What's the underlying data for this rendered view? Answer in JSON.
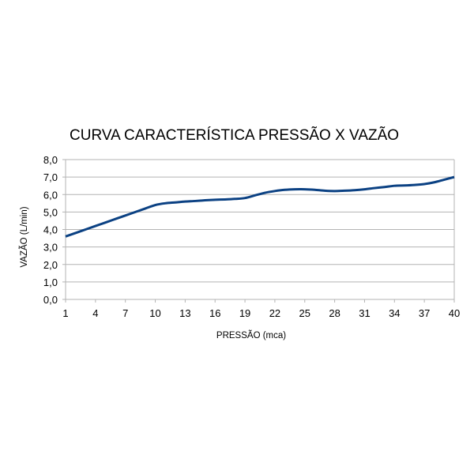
{
  "chart_data": {
    "type": "line",
    "title": "CURVA CARACTERÍSTICA PRESSÃO X VAZÃO",
    "xlabel": "PRESSÃO (mca)",
    "ylabel": "VAZÃO (L/min)",
    "x": [
      1,
      2,
      3,
      4,
      5,
      6,
      7,
      8,
      9,
      10,
      11,
      12,
      13,
      14,
      15,
      16,
      17,
      18,
      19,
      20,
      21,
      22,
      23,
      24,
      25,
      26,
      27,
      28,
      29,
      30,
      31,
      32,
      33,
      34,
      35,
      36,
      37,
      38,
      39,
      40
    ],
    "x_tick_labels": [
      "1",
      "4",
      "7",
      "10",
      "13",
      "16",
      "19",
      "22",
      "25",
      "28",
      "31",
      "34",
      "37",
      "40"
    ],
    "y_tick_labels": [
      "0,0",
      "1,0",
      "2,0",
      "3,0",
      "4,0",
      "5,0",
      "6,0",
      "7,0",
      "8,0"
    ],
    "ylim": [
      0,
      8
    ],
    "grid": true,
    "legend": "none",
    "series": [
      {
        "color": "#0b4183",
        "values": [
          3.6,
          3.8,
          4.0,
          4.2,
          4.4,
          4.6,
          4.8,
          5.0,
          5.2,
          5.4,
          5.5,
          5.55,
          5.6,
          5.63,
          5.67,
          5.7,
          5.72,
          5.75,
          5.8,
          5.95,
          6.1,
          6.2,
          6.27,
          6.3,
          6.3,
          6.27,
          6.22,
          6.2,
          6.22,
          6.25,
          6.3,
          6.37,
          6.43,
          6.5,
          6.52,
          6.55,
          6.6,
          6.7,
          6.85,
          7.0
        ]
      }
    ]
  }
}
